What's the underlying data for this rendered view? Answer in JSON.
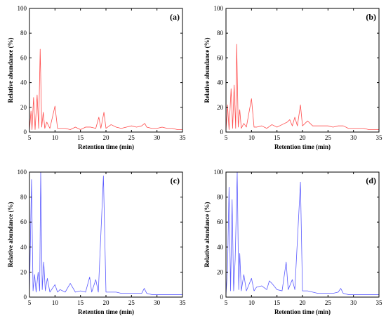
{
  "figure": {
    "x_axis_label": "Retention time (min)",
    "y_axis_label": "Relative abundance (%)",
    "x_ticks": [
      5,
      10,
      15,
      20,
      25,
      30,
      35
    ],
    "y_ticks": [
      0,
      20,
      40,
      60,
      80,
      100
    ]
  },
  "chart_data": [
    {
      "type": "line",
      "panel": "(a)",
      "color": "#ff4d4d",
      "xlabel": "Retention time (min)",
      "ylabel": "Relative abundance (%)",
      "xlim": [
        5,
        35
      ],
      "ylim": [
        0,
        100
      ],
      "grid": false,
      "series": [
        {
          "color": "#ff4d4d",
          "points": [
            [
              5,
              1.5
            ],
            [
              5.3,
              17
            ],
            [
              5.5,
              2
            ],
            [
              5.8,
              28
            ],
            [
              6.1,
              2
            ],
            [
              6.5,
              30
            ],
            [
              6.8,
              3
            ],
            [
              7.1,
              67
            ],
            [
              7.4,
              4
            ],
            [
              7.7,
              16
            ],
            [
              8,
              3
            ],
            [
              8.4,
              8
            ],
            [
              9,
              3
            ],
            [
              10,
              21
            ],
            [
              10.5,
              3
            ],
            [
              11,
              3
            ],
            [
              12,
              3
            ],
            [
              13,
              2
            ],
            [
              14,
              4
            ],
            [
              15,
              2
            ],
            [
              16,
              4
            ],
            [
              17,
              4
            ],
            [
              18,
              3
            ],
            [
              18.6,
              12
            ],
            [
              19,
              3
            ],
            [
              19.6,
              16
            ],
            [
              20,
              3
            ],
            [
              21,
              6
            ],
            [
              22,
              4
            ],
            [
              23,
              3
            ],
            [
              24,
              4
            ],
            [
              25,
              5
            ],
            [
              26,
              4
            ],
            [
              27,
              5
            ],
            [
              27.6,
              7
            ],
            [
              28,
              4
            ],
            [
              29,
              3
            ],
            [
              30,
              3
            ],
            [
              31,
              4
            ],
            [
              32,
              3
            ],
            [
              33,
              3
            ],
            [
              34,
              2
            ],
            [
              35,
              2
            ]
          ]
        }
      ]
    },
    {
      "type": "line",
      "panel": "(b)",
      "color": "#ff4d4d",
      "xlabel": "Retention time (min)",
      "ylabel": "Relative abundance (%)",
      "xlim": [
        5,
        35
      ],
      "ylim": [
        0,
        100
      ],
      "grid": false,
      "series": [
        {
          "color": "#ff4d4d",
          "points": [
            [
              5,
              1.5
            ],
            [
              5.3,
              22
            ],
            [
              5.6,
              2
            ],
            [
              6,
              35
            ],
            [
              6.3,
              3
            ],
            [
              6.6,
              38
            ],
            [
              6.9,
              3
            ],
            [
              7.1,
              71
            ],
            [
              7.4,
              4
            ],
            [
              7.7,
              18
            ],
            [
              8,
              3
            ],
            [
              8.5,
              7
            ],
            [
              9,
              4
            ],
            [
              10,
              27
            ],
            [
              10.5,
              4
            ],
            [
              11,
              4
            ],
            [
              12,
              5
            ],
            [
              13,
              3
            ],
            [
              14,
              6
            ],
            [
              15,
              4
            ],
            [
              16,
              6
            ],
            [
              17,
              8
            ],
            [
              17.5,
              10
            ],
            [
              18,
              5
            ],
            [
              18.5,
              12
            ],
            [
              19,
              5
            ],
            [
              19.6,
              22
            ],
            [
              20,
              5
            ],
            [
              21,
              9
            ],
            [
              22,
              5
            ],
            [
              23,
              5
            ],
            [
              24,
              5
            ],
            [
              25,
              5
            ],
            [
              26,
              4
            ],
            [
              27,
              5
            ],
            [
              28,
              5
            ],
            [
              29,
              3
            ],
            [
              30,
              3
            ],
            [
              31,
              3
            ],
            [
              32,
              3
            ],
            [
              33,
              2
            ],
            [
              34,
              2
            ],
            [
              35,
              2
            ]
          ]
        }
      ]
    },
    {
      "type": "line",
      "panel": "(c)",
      "color": "#5b5bff",
      "xlabel": "Retention time (min)",
      "ylabel": "Relative abundance (%)",
      "xlim": [
        5,
        35
      ],
      "ylim": [
        0,
        100
      ],
      "grid": false,
      "series": [
        {
          "color": "#5b5bff",
          "points": [
            [
              5,
              2
            ],
            [
              5.4,
              94
            ],
            [
              5.7,
              5
            ],
            [
              6,
              18
            ],
            [
              6.3,
              4
            ],
            [
              6.7,
              20
            ],
            [
              7,
              5
            ],
            [
              7.2,
              100
            ],
            [
              7.5,
              6
            ],
            [
              7.8,
              28
            ],
            [
              8.1,
              5
            ],
            [
              8.5,
              15
            ],
            [
              9,
              4
            ],
            [
              10,
              10
            ],
            [
              10.5,
              4
            ],
            [
              11,
              6
            ],
            [
              12,
              4
            ],
            [
              13,
              11
            ],
            [
              14,
              4
            ],
            [
              15,
              5
            ],
            [
              16,
              4
            ],
            [
              16.8,
              16
            ],
            [
              17.2,
              4
            ],
            [
              18,
              14
            ],
            [
              18.5,
              4
            ],
            [
              19.5,
              97
            ],
            [
              20,
              4
            ],
            [
              21,
              4
            ],
            [
              22,
              4
            ],
            [
              23,
              3
            ],
            [
              24,
              3
            ],
            [
              25,
              3
            ],
            [
              26,
              3
            ],
            [
              27,
              3
            ],
            [
              27.5,
              7
            ],
            [
              28,
              3
            ],
            [
              29,
              2
            ],
            [
              30,
              2
            ],
            [
              31,
              2
            ],
            [
              32,
              2
            ],
            [
              33,
              2
            ],
            [
              34,
              2
            ],
            [
              35,
              2
            ]
          ]
        }
      ]
    },
    {
      "type": "line",
      "panel": "(d)",
      "color": "#5b5bff",
      "xlabel": "Retention time (min)",
      "ylabel": "Relative abundance (%)",
      "xlim": [
        5,
        35
      ],
      "ylim": [
        0,
        100
      ],
      "grid": false,
      "series": [
        {
          "color": "#5b5bff",
          "points": [
            [
              5,
              2
            ],
            [
              5.3,
              22
            ],
            [
              5.6,
              88
            ],
            [
              5.9,
              5
            ],
            [
              6.2,
              78
            ],
            [
              6.5,
              5
            ],
            [
              6.8,
              30
            ],
            [
              7.2,
              100
            ],
            [
              7.5,
              6
            ],
            [
              7.7,
              35
            ],
            [
              8,
              5
            ],
            [
              8.5,
              18
            ],
            [
              9,
              5
            ],
            [
              10,
              15
            ],
            [
              10.5,
              5
            ],
            [
              11,
              8
            ],
            [
              12,
              9
            ],
            [
              13,
              6
            ],
            [
              13.5,
              13
            ],
            [
              14,
              11
            ],
            [
              15,
              6
            ],
            [
              16,
              5
            ],
            [
              16.8,
              28
            ],
            [
              17.2,
              6
            ],
            [
              18,
              14
            ],
            [
              18.5,
              6
            ],
            [
              19.6,
              92
            ],
            [
              20,
              5
            ],
            [
              21,
              5
            ],
            [
              22,
              4
            ],
            [
              23,
              3
            ],
            [
              24,
              3
            ],
            [
              25,
              3
            ],
            [
              26,
              3
            ],
            [
              27,
              4
            ],
            [
              27.5,
              7
            ],
            [
              28,
              3
            ],
            [
              29,
              2
            ],
            [
              30,
              2
            ],
            [
              32,
              2
            ],
            [
              33,
              2
            ],
            [
              34,
              2
            ],
            [
              35,
              2
            ]
          ]
        }
      ]
    }
  ]
}
